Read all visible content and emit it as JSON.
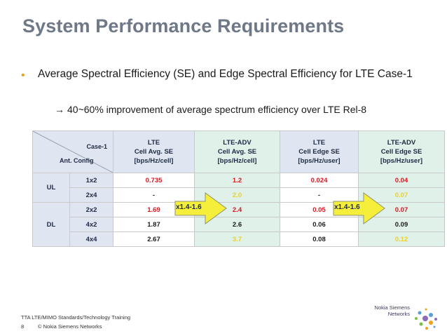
{
  "title": "System Performance Requirements",
  "bullet": {
    "text": "Average Spectral Efficiency (SE) and Edge Spectral Efficiency for LTE Case-1",
    "sub_arrow": "→",
    "sub_text": "40~60% improvement of average spectrum efficiency over LTE Rel-8"
  },
  "table": {
    "corner_top": "Case-1",
    "corner_bottom": "Ant. Config",
    "headers": [
      {
        "line1": "LTE",
        "line2": "Cell Avg. SE",
        "line3": "[bps/Hz/cell]"
      },
      {
        "line1": "LTE-ADV",
        "line2": "Cell Avg. SE",
        "line3": "[bps/Hz/cell]"
      },
      {
        "line1": "LTE",
        "line2": "Cell Edge SE",
        "line3": "[bps/Hz/user]"
      },
      {
        "line1": "LTE-ADV",
        "line2": "Cell Edge SE",
        "line3": "[bps/Hz/user]"
      }
    ],
    "groups": {
      "ul": "UL",
      "dl": "DL"
    },
    "rows": [
      {
        "config": "1x2",
        "lte_avg": "0.735",
        "adv_avg": "1.2",
        "lte_edge": "0.024",
        "adv_edge": "0.04"
      },
      {
        "config": "2x4",
        "lte_avg": "-",
        "adv_avg": "2.0",
        "lte_edge": "-",
        "adv_edge": "0.07"
      },
      {
        "config": "2x2",
        "lte_avg": "1.69",
        "adv_avg": "2.4",
        "lte_edge": "0.05",
        "adv_edge": "0.07"
      },
      {
        "config": "4x2",
        "lte_avg": "1.87",
        "adv_avg": "2.6",
        "lte_edge": "0.06",
        "adv_edge": "0.09"
      },
      {
        "config": "4x4",
        "lte_avg": "2.67",
        "adv_avg": "3.7",
        "lte_edge": "0.08",
        "adv_edge": "0.12"
      }
    ],
    "callout_avg": "x1.4-1.6",
    "callout_edge": "x1.4-1.6"
  },
  "footer": {
    "line1": "TTA LTE/MIMO Standards/Technology Training",
    "page": "8",
    "copyright": "© Nokia Siemens Networks"
  },
  "logo": {
    "line1": "Nokia Siemens",
    "line2": "Networks"
  },
  "colors": {
    "title": "#6f7886",
    "bullet": "#e6a21a",
    "red": "#e0141e",
    "orange": "#f2a000",
    "callout": "#f5ef3c"
  }
}
